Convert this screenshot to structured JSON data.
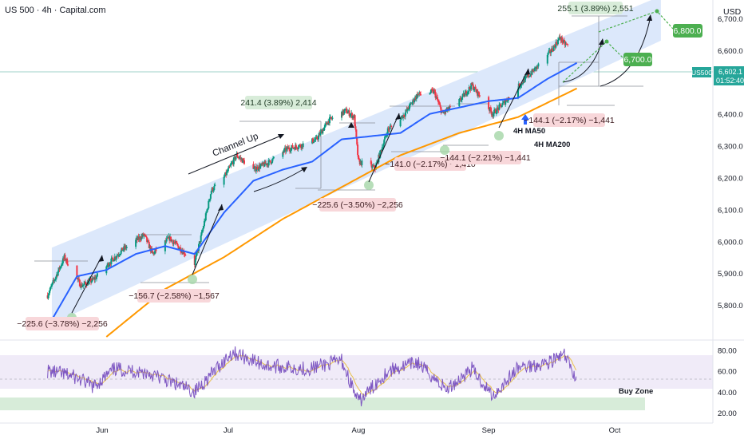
{
  "header": {
    "symbol_title": "US 500 · 4h · Capital.com"
  },
  "currency_label": "USD",
  "price_axis": {
    "ticks": [
      "6,700.0",
      "6,600.0",
      "6,500.0",
      "6,400.0",
      "6,300.0",
      "6,200.0",
      "6,100.0",
      "6,000.0",
      "5,900.0",
      "5,800.0"
    ],
    "current_price": {
      "symbol": "US500",
      "price": "6,602.1",
      "countdown": "01:52:40"
    }
  },
  "rsi_axis": {
    "ticks": [
      "80.00",
      "60.00",
      "40.00",
      "20.00"
    ]
  },
  "time_axis": {
    "ticks": [
      "Jun",
      "Jul",
      "Aug",
      "Sep",
      "Oct"
    ]
  },
  "annotations": {
    "channel_label": "Channel Up",
    "ma50_label": "4H MA50",
    "ma200_label": "4H MA200",
    "buy_zone_label": "Buy Zone",
    "target_1": "6,700.0",
    "target_2": "6,800.0",
    "measure_top": "255.1 (3.89%) 2,551",
    "measure_jul": "241.4 (3.89%) 2,414",
    "dd_may": "−225.6 (−3.78%) −2,256",
    "dd_jun": "−156.7 (−2.58%) −1,567",
    "dd_aug1": "−225.6 (−3.50%) −2,256",
    "dd_aug2": "−141.0 (−2.17%) −1,410",
    "dd_aug3": "−144.1 (−2.21%) −1,441",
    "dd_sep": "−144.1 (−2.17%) −1,441"
  },
  "colors": {
    "candle_up": "#089981",
    "candle_down": "#f23645",
    "ma50": "#2962ff",
    "ma200": "#ff9800",
    "channel_fill": "#dce8fb",
    "rsi_line": "#7e57c2",
    "rsi_ma": "#e8c04a",
    "buy_zone": "#d7ecd9",
    "label_green": "#4caf50",
    "label_red": "#f8d7da",
    "current_price": "#26a69a"
  },
  "chart_data": {
    "type": "candlestick",
    "symbol": "US 500",
    "timeframe": "4h",
    "y_range": [
      5730,
      6770
    ],
    "x_ticks": [
      "Jun",
      "Jul",
      "Aug",
      "Sep",
      "Oct"
    ],
    "price_keypoints": [
      [
        "2025-05-19",
        5830
      ],
      [
        "2025-05-23",
        5950
      ],
      [
        "2025-05-27",
        5860
      ],
      [
        "2025-05-30",
        5880
      ],
      [
        "2025-06-04",
        5950
      ],
      [
        "2025-06-06",
        5975
      ],
      [
        "2025-06-11",
        6020
      ],
      [
        "2025-06-13",
        5960
      ],
      [
        "2025-06-17",
        6010
      ],
      [
        "2025-06-19",
        5985
      ],
      [
        "2025-06-23",
        5930
      ],
      [
        "2025-06-25",
        6040
      ],
      [
        "2025-06-27",
        6160
      ],
      [
        "2025-06-30",
        6200
      ],
      [
        "2025-07-03",
        6270
      ],
      [
        "2025-07-07",
        6225
      ],
      [
        "2025-07-11",
        6250
      ],
      [
        "2025-07-15",
        6290
      ],
      [
        "2025-07-18",
        6300
      ],
      [
        "2025-07-22",
        6320
      ],
      [
        "2025-07-25",
        6380
      ],
      [
        "2025-07-29",
        6410
      ],
      [
        "2025-07-31",
        6390
      ],
      [
        "2025-08-01",
        6250
      ],
      [
        "2025-08-05",
        6230
      ],
      [
        "2025-08-08",
        6350
      ],
      [
        "2025-08-12",
        6400
      ],
      [
        "2025-08-15",
        6460
      ],
      [
        "2025-08-19",
        6470
      ],
      [
        "2025-08-21",
        6400
      ],
      [
        "2025-08-25",
        6440
      ],
      [
        "2025-08-28",
        6490
      ],
      [
        "2025-09-02",
        6400
      ],
      [
        "2025-09-05",
        6440
      ],
      [
        "2025-09-09",
        6500
      ],
      [
        "2025-09-12",
        6540
      ],
      [
        "2025-09-16",
        6600
      ],
      [
        "2025-09-18",
        6640
      ],
      [
        "2025-09-19",
        6620
      ],
      [
        "2025-09-22",
        6602
      ]
    ],
    "ma50_keypoints": [
      [
        "2025-05-19",
        5730
      ],
      [
        "2025-05-26",
        5890
      ],
      [
        "2025-06-02",
        5910
      ],
      [
        "2025-06-09",
        5960
      ],
      [
        "2025-06-16",
        5985
      ],
      [
        "2025-06-23",
        5960
      ],
      [
        "2025-06-30",
        6090
      ],
      [
        "2025-07-07",
        6190
      ],
      [
        "2025-07-14",
        6225
      ],
      [
        "2025-07-21",
        6250
      ],
      [
        "2025-07-28",
        6320
      ],
      [
        "2025-08-04",
        6330
      ],
      [
        "2025-08-11",
        6340
      ],
      [
        "2025-08-18",
        6400
      ],
      [
        "2025-08-25",
        6420
      ],
      [
        "2025-09-01",
        6440
      ],
      [
        "2025-09-08",
        6450
      ],
      [
        "2025-09-15",
        6510
      ],
      [
        "2025-09-22",
        6560
      ]
    ],
    "ma200_keypoints": [
      [
        "2025-06-02",
        5700
      ],
      [
        "2025-06-16",
        5850
      ],
      [
        "2025-06-30",
        5950
      ],
      [
        "2025-07-14",
        6070
      ],
      [
        "2025-07-28",
        6170
      ],
      [
        "2025-08-11",
        6270
      ],
      [
        "2025-08-25",
        6340
      ],
      [
        "2025-09-08",
        6390
      ],
      [
        "2025-09-22",
        6480
      ]
    ],
    "channel": {
      "top": [
        [
          "2025-05-20",
          5980
        ],
        [
          "2025-10-12",
          6770
        ]
      ],
      "bottom": [
        [
          "2025-05-20",
          5740
        ],
        [
          "2025-10-12",
          6630
        ]
      ]
    },
    "projection": [
      [
        "2025-09-22",
        6602
      ],
      [
        "2025-09-27",
        6700
      ],
      [
        "2025-10-06",
        6800
      ]
    ],
    "targets": [
      6700,
      6800
    ],
    "rsi": {
      "y_range": [
        20,
        85
      ],
      "buy_zone": [
        30,
        37
      ],
      "keypoints": [
        [
          "2025-05-19",
          60
        ],
        [
          "2025-05-25",
          55
        ],
        [
          "2025-05-30",
          45
        ],
        [
          "2025-06-04",
          62
        ],
        [
          "2025-06-12",
          58
        ],
        [
          "2025-06-23",
          40
        ],
        [
          "2025-07-02",
          78
        ],
        [
          "2025-07-10",
          65
        ],
        [
          "2025-07-20",
          62
        ],
        [
          "2025-07-28",
          70
        ],
        [
          "2025-08-01",
          30
        ],
        [
          "2025-08-08",
          60
        ],
        [
          "2025-08-15",
          68
        ],
        [
          "2025-08-22",
          42
        ],
        [
          "2025-08-28",
          62
        ],
        [
          "2025-09-02",
          36
        ],
        [
          "2025-09-08",
          63
        ],
        [
          "2025-09-15",
          68
        ],
        [
          "2025-09-19",
          75
        ],
        [
          "2025-09-22",
          52
        ]
      ]
    }
  }
}
